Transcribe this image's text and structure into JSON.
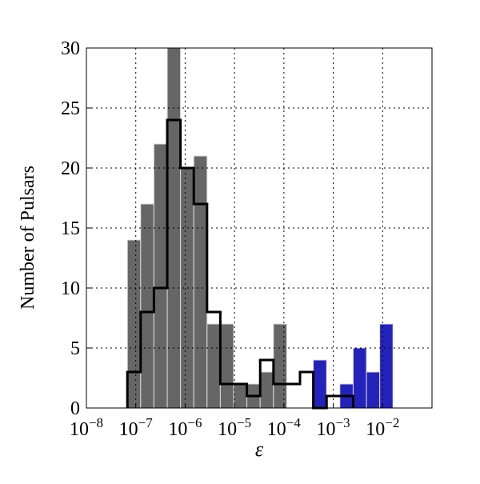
{
  "chart_data": {
    "type": "histogram",
    "x_label": "ε",
    "y_label": "Number of Pulsars",
    "log_x": true,
    "grid": true,
    "bins": [
      6.76e-08,
      1.256e-07,
      2.33e-07,
      4.34e-07,
      8.05e-07,
      1.496e-06,
      2.78e-06,
      5.16e-06,
      9.59e-06,
      1.78e-05,
      3.31e-05,
      6.15e-05,
      0.0001143,
      0.000212,
      0.000394,
      0.000733,
      0.00136,
      0.00253,
      0.0047,
      0.00873,
      0.0162
    ],
    "series": [
      {
        "color": "#666666",
        "style": "filled",
        "values": [
          14,
          17,
          22,
          30,
          20,
          21,
          7,
          7,
          2,
          2,
          3,
          7,
          0,
          0,
          0,
          0,
          0,
          0,
          0,
          0
        ]
      },
      {
        "color": "#2323bb",
        "style": "filled",
        "values": [
          0,
          0,
          0,
          0,
          0,
          0,
          0,
          0,
          0,
          0,
          0,
          0,
          0,
          0,
          4,
          0,
          2,
          5,
          3,
          7
        ]
      },
      {
        "color": "#000000",
        "style": "step",
        "values": [
          3,
          8,
          10,
          24,
          20,
          17,
          8,
          2,
          2,
          1,
          4,
          2,
          2,
          3,
          0,
          1,
          1,
          0,
          0,
          0
        ]
      }
    ],
    "xlim": [
      1e-08,
      0.1
    ],
    "xticks": [
      {
        "value": 1e-08,
        "label": "10−8"
      },
      {
        "value": 1e-07,
        "label": "10−7"
      },
      {
        "value": 1e-06,
        "label": "10−6"
      },
      {
        "value": 1e-05,
        "label": "10−5"
      },
      {
        "value": 0.0001,
        "label": "10−4"
      },
      {
        "value": 0.001,
        "label": "10−3"
      },
      {
        "value": 0.01,
        "label": "10−2"
      }
    ],
    "ylim": [
      0,
      30
    ],
    "yticks": [
      0,
      5,
      10,
      15,
      20,
      25,
      30
    ]
  }
}
